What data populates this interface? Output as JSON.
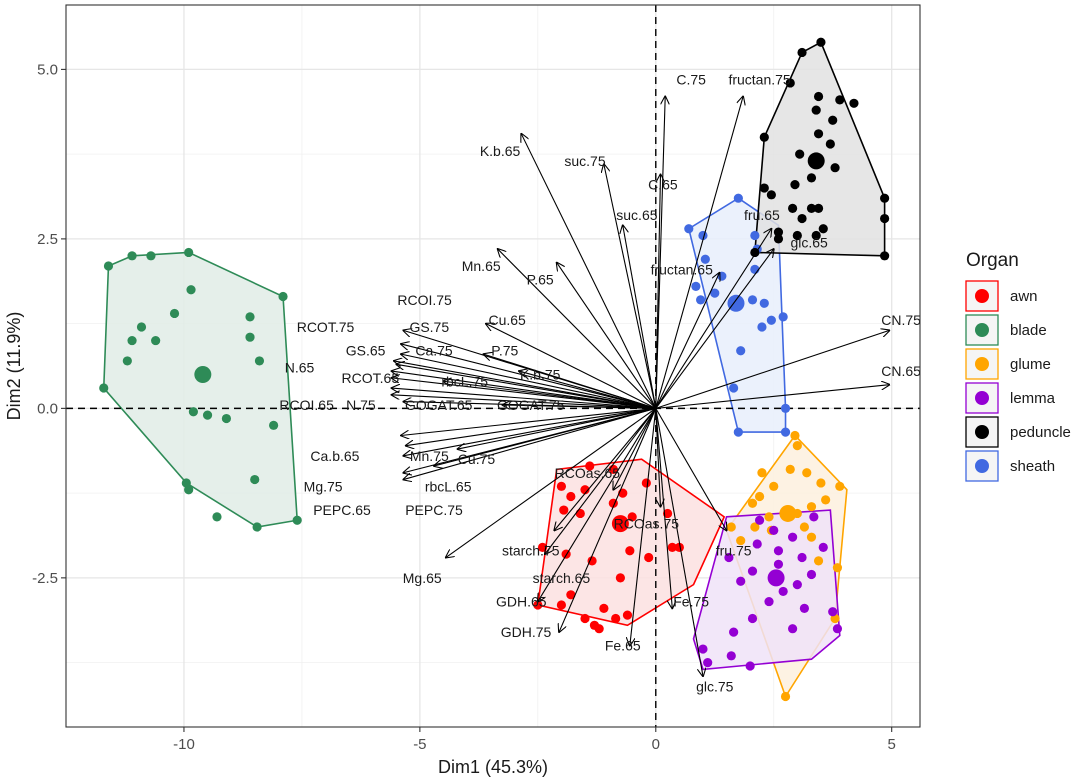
{
  "chart_data": {
    "type": "scatter",
    "subtype": "PCA biplot",
    "xlabel": "Dim1 (45.3%)",
    "ylabel": "Dim2 (11.9%)",
    "xlim": [
      -12.5,
      5.6
    ],
    "ylim": [
      -4.7,
      5.95
    ],
    "xticks": [
      -10,
      -5,
      0,
      5
    ],
    "xtick_labels": [
      "-10",
      "-5",
      "0",
      "5"
    ],
    "yticks": [
      -2.5,
      0.0,
      2.5,
      5.0
    ],
    "ytick_labels": [
      "-2.5",
      "0.0",
      "2.5",
      "5.0"
    ],
    "grid": true,
    "reference_lines": [
      {
        "axis": "x",
        "value": 0,
        "style": "dashed"
      },
      {
        "axis": "y",
        "value": 0,
        "style": "dashed"
      }
    ],
    "legend": {
      "title": "Organ",
      "position": "right",
      "entries": [
        {
          "name": "awn",
          "color": "#ff0000"
        },
        {
          "name": "blade",
          "color": "#2e8b57"
        },
        {
          "name": "glume",
          "color": "#ffa500"
        },
        {
          "name": "lemma",
          "color": "#9400d3"
        },
        {
          "name": "peduncle",
          "color": "#000000"
        },
        {
          "name": "sheath",
          "color": "#4169e1"
        }
      ]
    },
    "groups": [
      {
        "name": "blade",
        "color": "#2e8b57",
        "fill": "#e0ece6",
        "centroid": [
          -9.6,
          0.5
        ],
        "points": [
          [
            -11.6,
            2.1
          ],
          [
            -11.1,
            2.25
          ],
          [
            -10.7,
            2.25
          ],
          [
            -9.9,
            2.3
          ],
          [
            -9.85,
            1.75
          ],
          [
            -10.2,
            1.4
          ],
          [
            -10.9,
            1.2
          ],
          [
            -11.1,
            1.0
          ],
          [
            -10.6,
            1.0
          ],
          [
            -11.2,
            0.7
          ],
          [
            -8.6,
            1.35
          ],
          [
            -8.6,
            1.05
          ],
          [
            -8.4,
            0.7
          ],
          [
            -9.8,
            -0.05
          ],
          [
            -9.5,
            -0.1
          ],
          [
            -9.1,
            -0.15
          ],
          [
            -8.1,
            -0.25
          ],
          [
            -9.95,
            -1.1
          ],
          [
            -9.9,
            -1.2
          ],
          [
            -8.5,
            -1.05
          ],
          [
            -9.3,
            -1.6
          ],
          [
            -8.45,
            -1.75
          ],
          [
            -7.6,
            -1.65
          ],
          [
            -11.7,
            0.3
          ],
          [
            -7.9,
            1.65
          ]
        ],
        "hull": [
          [
            -11.6,
            2.1
          ],
          [
            -11.1,
            2.25
          ],
          [
            -9.9,
            2.3
          ],
          [
            -7.9,
            1.65
          ],
          [
            -7.6,
            -1.65
          ],
          [
            -8.45,
            -1.75
          ],
          [
            -9.95,
            -1.1
          ],
          [
            -11.7,
            0.3
          ]
        ]
      },
      {
        "name": "sheath",
        "color": "#4169e1",
        "fill": "#e8eefb",
        "centroid": [
          1.7,
          1.55
        ],
        "points": [
          [
            1.75,
            3.1
          ],
          [
            0.7,
            2.65
          ],
          [
            1.0,
            2.55
          ],
          [
            1.05,
            2.2
          ],
          [
            2.1,
            2.55
          ],
          [
            2.15,
            2.35
          ],
          [
            2.1,
            2.05
          ],
          [
            0.85,
            1.8
          ],
          [
            1.25,
            1.7
          ],
          [
            1.7,
            1.5
          ],
          [
            2.05,
            1.6
          ],
          [
            2.3,
            1.55
          ],
          [
            2.45,
            1.3
          ],
          [
            1.8,
            0.85
          ],
          [
            2.25,
            1.2
          ],
          [
            1.65,
            0.3
          ],
          [
            2.75,
            0.0
          ],
          [
            1.75,
            -0.35
          ],
          [
            2.75,
            -0.35
          ],
          [
            1.4,
            1.95
          ],
          [
            0.95,
            1.6
          ],
          [
            2.7,
            1.35
          ]
        ],
        "hull": [
          [
            1.75,
            3.1
          ],
          [
            2.6,
            2.7
          ],
          [
            2.75,
            0.0
          ],
          [
            2.75,
            -0.35
          ],
          [
            1.75,
            -0.35
          ],
          [
            0.7,
            2.65
          ]
        ]
      },
      {
        "name": "peduncle",
        "color": "#000000",
        "fill": "#e2e2e2",
        "centroid": [
          3.4,
          3.65
        ],
        "points": [
          [
            3.5,
            5.4
          ],
          [
            3.1,
            5.25
          ],
          [
            2.85,
            4.8
          ],
          [
            3.45,
            4.6
          ],
          [
            3.4,
            4.4
          ],
          [
            3.9,
            4.55
          ],
          [
            3.75,
            4.25
          ],
          [
            3.45,
            4.05
          ],
          [
            3.05,
            3.75
          ],
          [
            3.7,
            3.9
          ],
          [
            2.3,
            4.0
          ],
          [
            3.3,
            3.4
          ],
          [
            2.95,
            3.3
          ],
          [
            2.3,
            3.25
          ],
          [
            2.45,
            3.15
          ],
          [
            2.9,
            2.95
          ],
          [
            3.3,
            2.95
          ],
          [
            3.45,
            2.95
          ],
          [
            3.1,
            2.8
          ],
          [
            3.0,
            2.55
          ],
          [
            3.4,
            2.55
          ],
          [
            3.55,
            2.65
          ],
          [
            2.6,
            2.6
          ],
          [
            4.85,
            3.1
          ],
          [
            4.85,
            2.8
          ],
          [
            4.85,
            2.25
          ],
          [
            2.1,
            2.3
          ],
          [
            2.6,
            2.5
          ],
          [
            4.2,
            4.5
          ],
          [
            3.8,
            3.55
          ]
        ],
        "hull": [
          [
            3.5,
            5.4
          ],
          [
            4.85,
            3.1
          ],
          [
            4.85,
            2.25
          ],
          [
            2.1,
            2.3
          ],
          [
            2.3,
            4.0
          ],
          [
            3.1,
            5.25
          ]
        ]
      },
      {
        "name": "awn",
        "color": "#ff0000",
        "fill": "#fbe1e1",
        "centroid": [
          -0.75,
          -1.7
        ],
        "points": [
          [
            -1.4,
            -0.85
          ],
          [
            -0.9,
            -0.9
          ],
          [
            -0.2,
            -1.1
          ],
          [
            -2.0,
            -1.15
          ],
          [
            -1.8,
            -1.3
          ],
          [
            -1.5,
            -1.2
          ],
          [
            -0.7,
            -1.25
          ],
          [
            -1.95,
            -1.5
          ],
          [
            -1.6,
            -1.55
          ],
          [
            -0.9,
            -1.4
          ],
          [
            -0.5,
            -1.6
          ],
          [
            0.25,
            -1.55
          ],
          [
            0.35,
            -2.05
          ],
          [
            0.5,
            -2.05
          ],
          [
            -2.4,
            -2.05
          ],
          [
            -1.9,
            -2.15
          ],
          [
            -1.35,
            -2.25
          ],
          [
            -0.55,
            -2.1
          ],
          [
            -0.75,
            -2.5
          ],
          [
            -1.8,
            -2.75
          ],
          [
            -1.1,
            -2.95
          ],
          [
            -0.85,
            -3.1
          ],
          [
            -1.5,
            -3.1
          ],
          [
            -1.3,
            -3.2
          ],
          [
            -2.5,
            -2.9
          ],
          [
            -1.2,
            -3.25
          ],
          [
            -0.6,
            -3.05
          ],
          [
            -2.0,
            -2.9
          ],
          [
            -0.15,
            -2.2
          ]
        ],
        "hull": [
          [
            -2.1,
            -0.9
          ],
          [
            -0.3,
            -0.75
          ],
          [
            1.45,
            -1.6
          ],
          [
            0.8,
            -2.6
          ],
          [
            -0.6,
            -3.2
          ],
          [
            -2.5,
            -2.9
          ]
        ]
      },
      {
        "name": "glume",
        "color": "#ffa500",
        "fill": "#fdf0de",
        "centroid": [
          2.8,
          -1.55
        ],
        "points": [
          [
            2.95,
            -0.4
          ],
          [
            3.0,
            -0.55
          ],
          [
            3.2,
            -0.95
          ],
          [
            2.85,
            -0.9
          ],
          [
            2.25,
            -0.95
          ],
          [
            3.9,
            -1.15
          ],
          [
            3.5,
            -1.1
          ],
          [
            2.5,
            -1.15
          ],
          [
            2.2,
            -1.3
          ],
          [
            2.4,
            -1.6
          ],
          [
            2.05,
            -1.4
          ],
          [
            3.0,
            -1.55
          ],
          [
            3.3,
            -1.45
          ],
          [
            3.15,
            -1.75
          ],
          [
            1.6,
            -1.75
          ],
          [
            1.8,
            -1.95
          ],
          [
            2.1,
            -1.75
          ],
          [
            3.3,
            -1.9
          ],
          [
            3.85,
            -2.35
          ],
          [
            3.45,
            -2.25
          ],
          [
            3.8,
            -3.1
          ],
          [
            2.75,
            -4.25
          ],
          [
            2.45,
            -1.8
          ],
          [
            3.6,
            -1.35
          ]
        ],
        "hull": [
          [
            2.95,
            -0.4
          ],
          [
            4.05,
            -1.2
          ],
          [
            3.8,
            -3.1
          ],
          [
            2.75,
            -4.25
          ],
          [
            1.5,
            -1.8
          ]
        ]
      },
      {
        "name": "lemma",
        "color": "#9400d3",
        "fill": "#f0e3f8",
        "centroid": [
          2.55,
          -2.5
        ],
        "points": [
          [
            2.2,
            -1.65
          ],
          [
            2.5,
            -1.8
          ],
          [
            2.9,
            -1.9
          ],
          [
            3.35,
            -1.6
          ],
          [
            2.15,
            -2.0
          ],
          [
            2.6,
            -2.1
          ],
          [
            3.1,
            -2.2
          ],
          [
            3.55,
            -2.05
          ],
          [
            1.55,
            -2.2
          ],
          [
            2.05,
            -2.4
          ],
          [
            2.6,
            -2.3
          ],
          [
            3.0,
            -2.6
          ],
          [
            3.3,
            -2.45
          ],
          [
            1.8,
            -2.55
          ],
          [
            2.4,
            -2.85
          ],
          [
            3.15,
            -2.95
          ],
          [
            2.05,
            -3.1
          ],
          [
            1.65,
            -3.3
          ],
          [
            2.9,
            -3.25
          ],
          [
            1.0,
            -3.55
          ],
          [
            1.6,
            -3.65
          ],
          [
            1.1,
            -3.75
          ],
          [
            2.0,
            -3.8
          ],
          [
            3.85,
            -3.25
          ],
          [
            3.75,
            -3.0
          ],
          [
            2.7,
            -2.7
          ]
        ],
        "hull": [
          [
            1.5,
            -1.6
          ],
          [
            3.7,
            -1.5
          ],
          [
            3.9,
            -3.35
          ],
          [
            3.3,
            -3.7
          ],
          [
            1.0,
            -3.85
          ],
          [
            0.8,
            -3.4
          ]
        ]
      }
    ],
    "variables": [
      {
        "name": "C.75",
        "x": 0.2,
        "y": 4.6,
        "lx": 0.75,
        "ly": 4.85
      },
      {
        "name": "fructan.75",
        "x": 1.85,
        "y": 4.6,
        "lx": 2.2,
        "ly": 4.85
      },
      {
        "name": "K.b.65",
        "x": -2.85,
        "y": 4.05,
        "lx": -3.3,
        "ly": 3.8
      },
      {
        "name": "suc.75",
        "x": -1.1,
        "y": 3.6,
        "lx": -1.5,
        "ly": 3.65
      },
      {
        "name": "C.65",
        "x": 0.1,
        "y": 3.45,
        "lx": 0.15,
        "ly": 3.3
      },
      {
        "name": "suc.65",
        "x": -0.7,
        "y": 2.7,
        "lx": -0.4,
        "ly": 2.85
      },
      {
        "name": "fru.65",
        "x": 2.45,
        "y": 2.65,
        "lx": 2.25,
        "ly": 2.85
      },
      {
        "name": "glc.65",
        "x": 2.5,
        "y": 2.35,
        "lx": 3.25,
        "ly": 2.45
      },
      {
        "name": "fructan.65",
        "x": 1.35,
        "y": 2.0,
        "lx": 0.55,
        "ly": 2.05
      },
      {
        "name": "Mn.65",
        "x": -3.35,
        "y": 2.35,
        "lx": -3.7,
        "ly": 2.1
      },
      {
        "name": "P.65",
        "x": -2.1,
        "y": 2.15,
        "lx": -2.45,
        "ly": 1.9
      },
      {
        "name": "RCOI.75",
        "x": -5.35,
        "y": 1.15,
        "lx": -4.9,
        "ly": 1.6
      },
      {
        "name": "RCOT.75",
        "x": -5.4,
        "y": 0.95,
        "lx": -7.0,
        "ly": 1.2
      },
      {
        "name": "GS.75",
        "x": -5.4,
        "y": 0.8,
        "lx": -4.8,
        "ly": 1.2
      },
      {
        "name": "Cu.65",
        "x": -3.6,
        "y": 1.25,
        "lx": -3.15,
        "ly": 1.3
      },
      {
        "name": "GS.65",
        "x": -5.55,
        "y": 0.7,
        "lx": -6.15,
        "ly": 0.85
      },
      {
        "name": "Ca.75",
        "x": -5.5,
        "y": 0.65,
        "lx": -4.7,
        "ly": 0.85
      },
      {
        "name": "P.75",
        "x": -3.65,
        "y": 0.8,
        "lx": -3.2,
        "ly": 0.85
      },
      {
        "name": "N.65",
        "x": -5.6,
        "y": 0.55,
        "lx": -7.55,
        "ly": 0.6
      },
      {
        "name": "RCOT.65",
        "x": -5.6,
        "y": 0.45,
        "lx": -6.05,
        "ly": 0.45
      },
      {
        "name": "rbcL.75",
        "x": -4.5,
        "y": 0.4,
        "lx": -4.05,
        "ly": 0.4
      },
      {
        "name": "K.b.75",
        "x": -2.9,
        "y": 0.55,
        "lx": -2.45,
        "ly": 0.5
      },
      {
        "name": "RCOI.65",
        "x": -5.6,
        "y": 0.3,
        "lx": -7.4,
        "ly": 0.05
      },
      {
        "name": "N.75",
        "x": -5.6,
        "y": 0.2,
        "lx": -6.25,
        "ly": 0.05
      },
      {
        "name": "GOGAT.65",
        "x": -5.35,
        "y": 0.1,
        "lx": -4.6,
        "ly": 0.05
      },
      {
        "name": "GOGAT.75",
        "x": -3.25,
        "y": 0.05,
        "lx": -2.65,
        "ly": 0.05
      },
      {
        "name": "Ca.b.65",
        "x": -5.4,
        "y": -0.4,
        "lx": -6.8,
        "ly": -0.7
      },
      {
        "name": "Mn.75",
        "x": -5.3,
        "y": -0.55,
        "lx": -4.8,
        "ly": -0.7
      },
      {
        "name": "Cu.75",
        "x": -4.2,
        "y": -0.6,
        "lx": -3.8,
        "ly": -0.75
      },
      {
        "name": "Mg.75",
        "x": -5.35,
        "y": -0.7,
        "lx": -7.05,
        "ly": -1.15
      },
      {
        "name": "rbcL.65",
        "x": -4.7,
        "y": -0.85,
        "lx": -4.4,
        "ly": -1.15
      },
      {
        "name": "PEPC.65",
        "x": -5.35,
        "y": -0.95,
        "lx": -6.65,
        "ly": -1.5
      },
      {
        "name": "PEPC.75",
        "x": -5.35,
        "y": -1.05,
        "lx": -4.7,
        "ly": -1.5
      },
      {
        "name": "RCOas.65",
        "x": -0.9,
        "y": -1.2,
        "lx": -1.45,
        "ly": -0.95
      },
      {
        "name": "RCOas.75",
        "x": 0.1,
        "y": -1.45,
        "lx": -0.2,
        "ly": -1.7
      },
      {
        "name": "starch.75",
        "x": -2.15,
        "y": -1.8,
        "lx": -2.65,
        "ly": -2.1
      },
      {
        "name": "fru.75",
        "x": 1.5,
        "y": -1.8,
        "lx": 1.65,
        "ly": -2.1
      },
      {
        "name": "Mg.65",
        "x": -4.45,
        "y": -2.2,
        "lx": -4.95,
        "ly": -2.5
      },
      {
        "name": "starch.65",
        "x": -2.35,
        "y": -2.15,
        "lx": -2.0,
        "ly": -2.5
      },
      {
        "name": "GDH.65",
        "x": -2.5,
        "y": -2.85,
        "lx": -2.85,
        "ly": -2.85
      },
      {
        "name": "Fe.75",
        "x": 0.35,
        "y": -2.95,
        "lx": 0.75,
        "ly": -2.85
      },
      {
        "name": "GDH.75",
        "x": -2.05,
        "y": -3.3,
        "lx": -2.75,
        "ly": -3.3
      },
      {
        "name": "Fe.65",
        "x": -0.55,
        "y": -3.5,
        "lx": -0.7,
        "ly": -3.5
      },
      {
        "name": "glc.75",
        "x": 1.0,
        "y": -3.95,
        "lx": 1.25,
        "ly": -4.1
      },
      {
        "name": "CN.75",
        "x": 4.95,
        "y": 1.15,
        "lx": 5.2,
        "ly": 1.3
      },
      {
        "name": "CN.65",
        "x": 4.95,
        "y": 0.35,
        "lx": 5.2,
        "ly": 0.55
      }
    ]
  }
}
